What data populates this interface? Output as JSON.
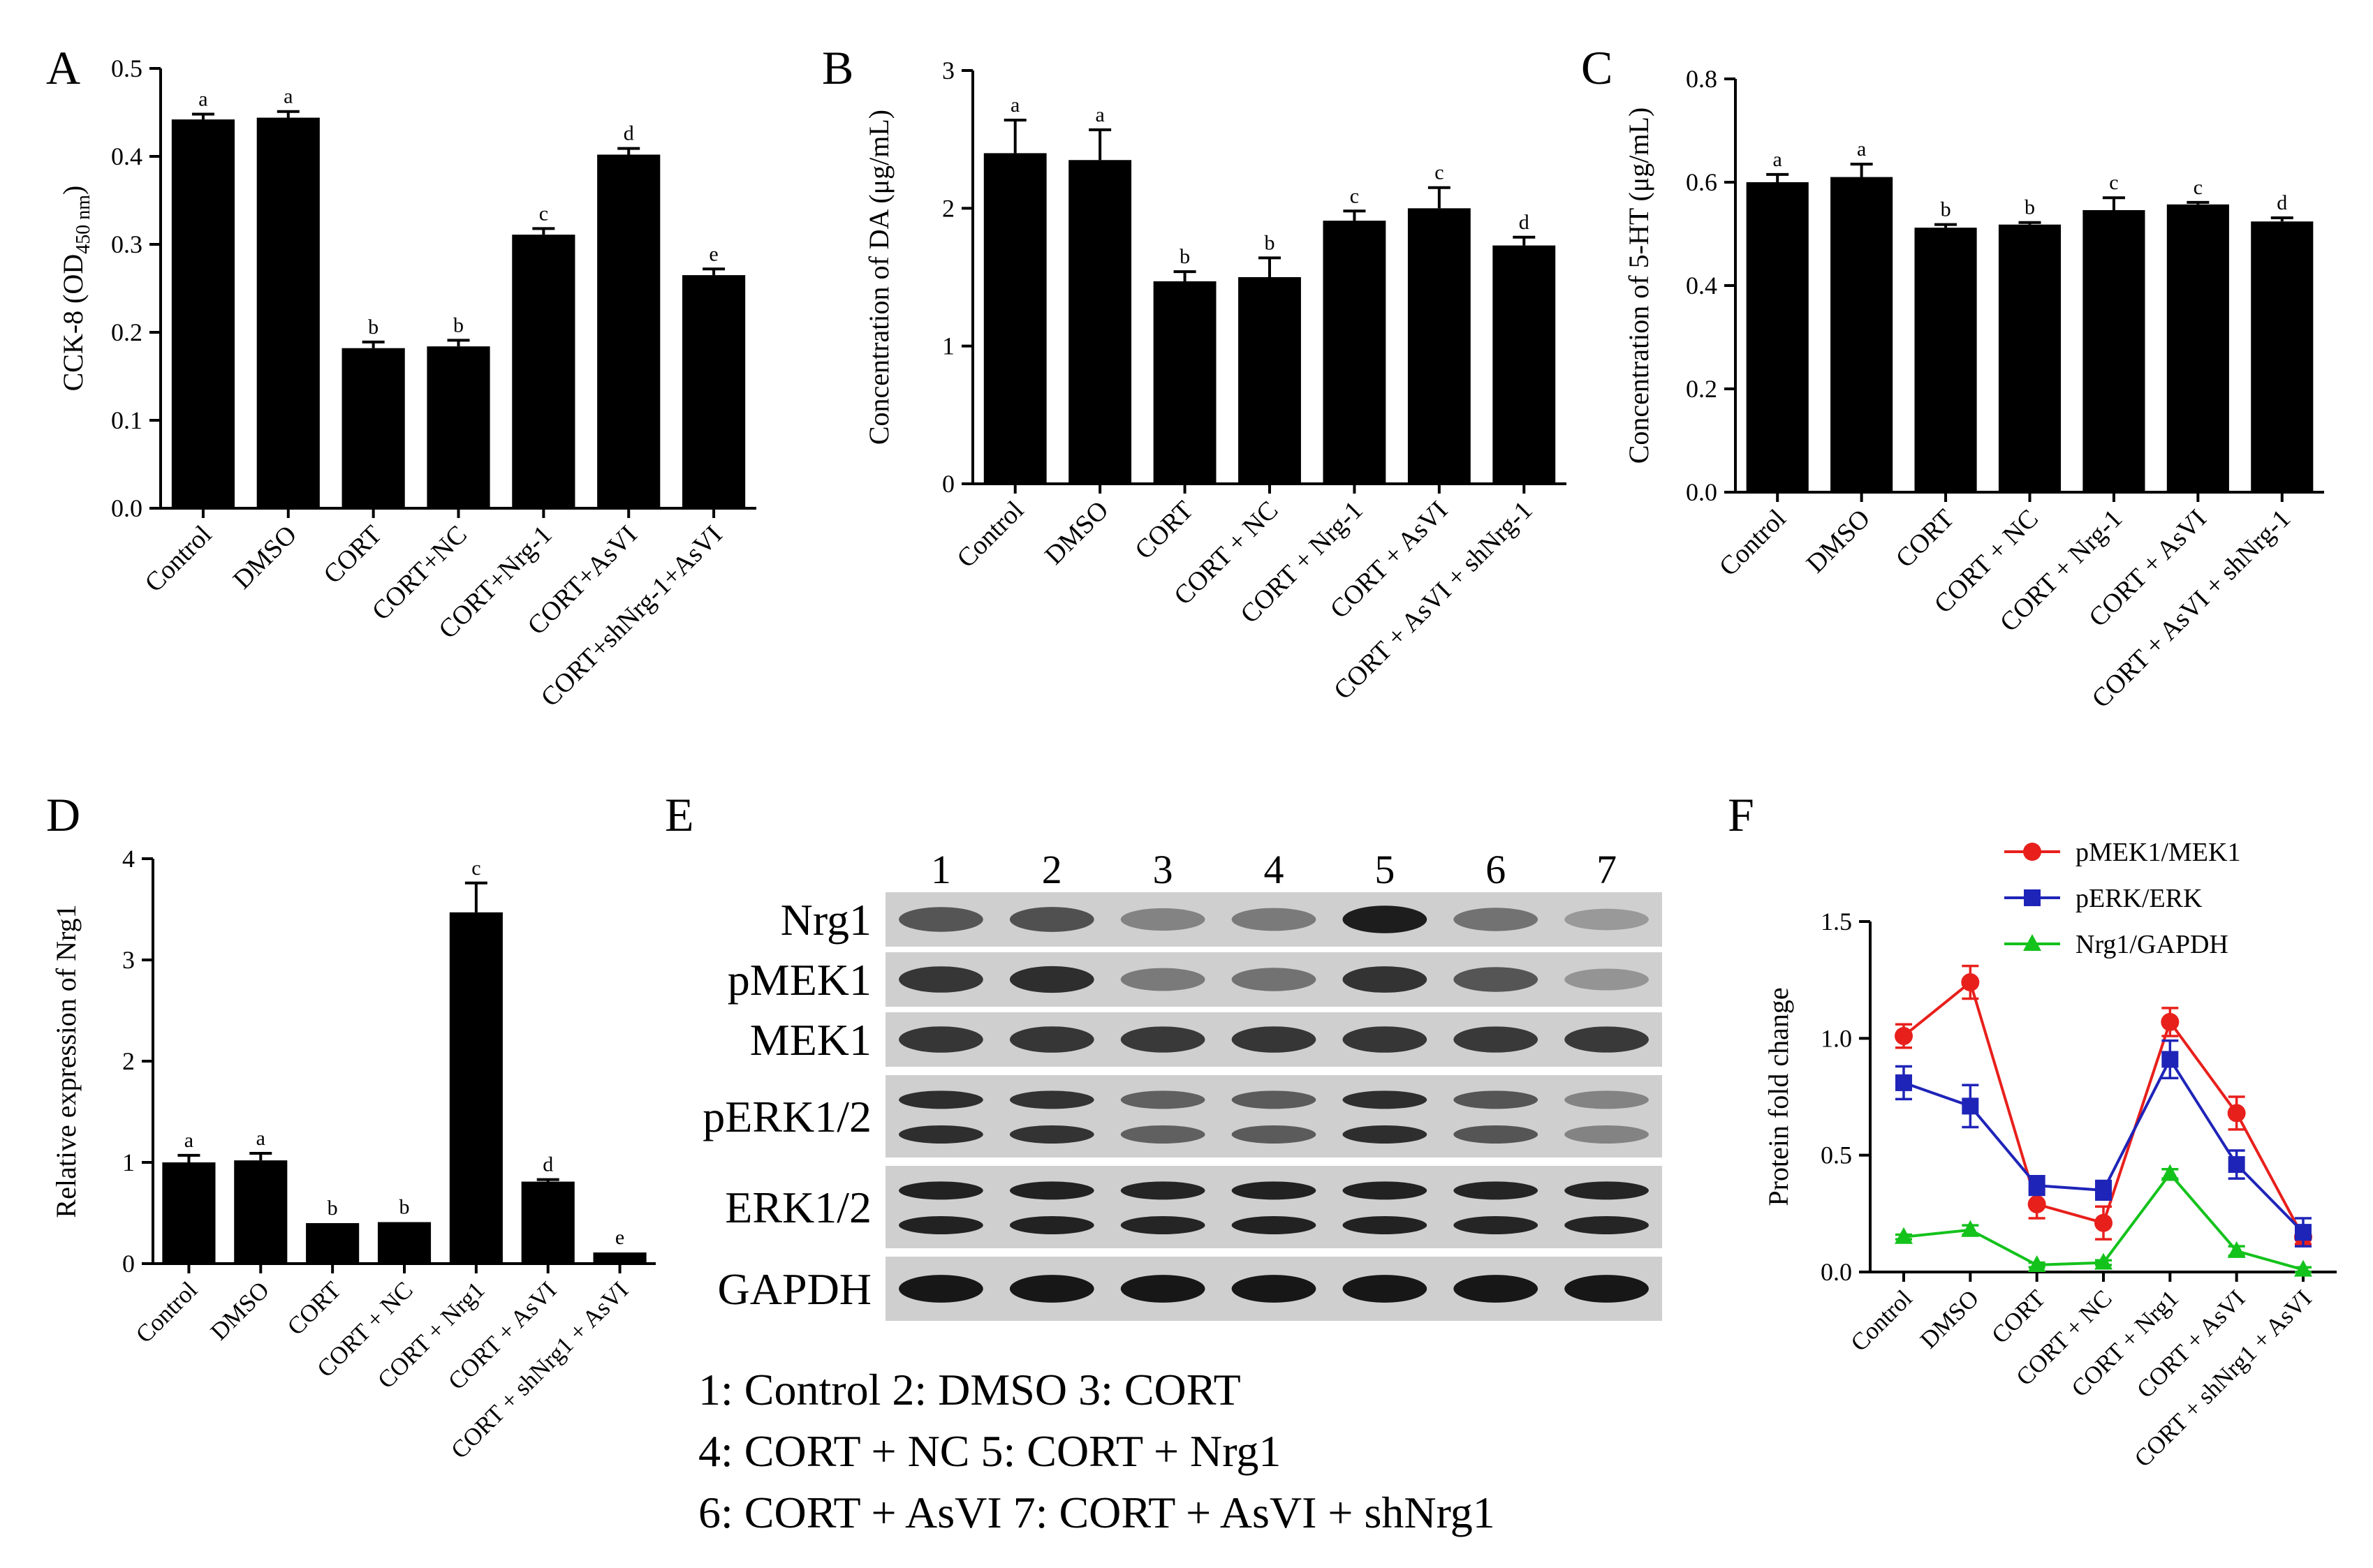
{
  "figure": {
    "background": "#ffffff",
    "bar_color": "#000000"
  },
  "chart_data": [
    {
      "id": "A",
      "type": "bar",
      "panel_label": "A",
      "ylabel_main": "CCK-8 (OD",
      "ylabel_sub": "450 nm",
      "ylabel_end": ")",
      "ylim": [
        0,
        0.5
      ],
      "yticks": [
        "0.0",
        "0.1",
        "0.2",
        "0.3",
        "0.4",
        "0.5"
      ],
      "categories": [
        "Control",
        "DMSO",
        "CORT",
        "CORT+NC",
        "CORT+Nrg-1",
        "CORT+AsVI",
        "CORT+shNrg-1+AsVI"
      ],
      "values": [
        0.442,
        0.444,
        0.182,
        0.184,
        0.311,
        0.402,
        0.265
      ],
      "errors": [
        0.006,
        0.007,
        0.007,
        0.007,
        0.007,
        0.007,
        0.007
      ],
      "significance": [
        "a",
        "a",
        "b",
        "b",
        "c",
        "d",
        "e"
      ]
    },
    {
      "id": "B",
      "type": "bar",
      "panel_label": "B",
      "ylabel": "Concentration of DA (μg/mL)",
      "ylim": [
        0,
        3
      ],
      "yticks": [
        "0",
        "1",
        "2",
        "3"
      ],
      "categories": [
        "Control",
        "DMSO",
        "CORT",
        "CORT + NC",
        "CORT + Nrg-1",
        "CORT + AsVI",
        "CORT + AsVI + shNrg-1"
      ],
      "values": [
        2.4,
        2.35,
        1.47,
        1.5,
        1.91,
        2.0,
        1.73
      ],
      "errors": [
        0.24,
        0.22,
        0.07,
        0.14,
        0.07,
        0.15,
        0.06
      ],
      "significance": [
        "a",
        "a",
        "b",
        "b",
        "c",
        "c",
        "d"
      ]
    },
    {
      "id": "C",
      "type": "bar",
      "panel_label": "C",
      "ylabel": "Concentration of 5-HT (μg/mL)",
      "ylim": [
        0,
        0.8
      ],
      "yticks": [
        "0.0",
        "0.2",
        "0.4",
        "0.6",
        "0.8"
      ],
      "categories": [
        "Control",
        "DMSO",
        "CORT",
        "CORT + NC",
        "CORT + Nrg-1",
        "CORT + AsVI",
        "CORT + AsVI + shNrg-1"
      ],
      "values": [
        0.6,
        0.61,
        0.512,
        0.518,
        0.546,
        0.557,
        0.524
      ],
      "errors": [
        0.015,
        0.025,
        0.006,
        0.004,
        0.024,
        0.004,
        0.007
      ],
      "significance": [
        "a",
        "a",
        "b",
        "b",
        "c",
        "c",
        "d"
      ]
    },
    {
      "id": "D",
      "type": "bar",
      "panel_label": "D",
      "ylabel": "Relative expression of Nrg1",
      "ylim": [
        0,
        4
      ],
      "yticks": [
        "0",
        "1",
        "2",
        "3",
        "4"
      ],
      "categories": [
        "Control",
        "DMSO",
        "CORT",
        "CORT + NC",
        "CORT + Nrg1",
        "CORT + AsVI",
        "CORT + shNrg1 + AsVI"
      ],
      "values": [
        1.0,
        1.02,
        0.4,
        0.41,
        3.47,
        0.81,
        0.11
      ],
      "errors": [
        0.07,
        0.07,
        0.0,
        0.0,
        0.29,
        0.02,
        0.0
      ],
      "significance": [
        "a",
        "a",
        "b",
        "b",
        "c",
        "d",
        "e"
      ]
    },
    {
      "id": "F",
      "type": "line",
      "panel_label": "F",
      "ylabel": "Protein fold change",
      "ylim": [
        0,
        1.5
      ],
      "yticks": [
        "0.0",
        "0.5",
        "1.0",
        "1.5"
      ],
      "categories": [
        "Control",
        "DMSO",
        "CORT",
        "CORT + NC",
        "CORT + Nrg1",
        "CORT + AsVI",
        "CORT + shNrg1 + AsVI"
      ],
      "legend_position": "top",
      "series": [
        {
          "name": "pMEK1/MEK1",
          "color": "#e8201c",
          "marker": "circle",
          "values": [
            1.01,
            1.24,
            0.29,
            0.21,
            1.07,
            0.68,
            0.15
          ],
          "errors": [
            0.05,
            0.07,
            0.06,
            0.07,
            0.06,
            0.07,
            0.03
          ]
        },
        {
          "name": "pERK/ERK",
          "color": "#1f24b8",
          "marker": "square",
          "values": [
            0.81,
            0.71,
            0.37,
            0.35,
            0.91,
            0.46,
            0.17
          ],
          "errors": [
            0.07,
            0.09,
            0.04,
            0.04,
            0.08,
            0.06,
            0.06
          ]
        },
        {
          "name": "Nrg1/GAPDH",
          "color": "#14c21c",
          "marker": "triangle",
          "values": [
            0.15,
            0.18,
            0.03,
            0.04,
            0.42,
            0.09,
            0.01
          ],
          "errors": [
            0.01,
            0.02,
            0.01,
            0.01,
            0.02,
            0.02,
            0.01
          ]
        }
      ]
    }
  ],
  "blot": {
    "panel_label": "E",
    "lanes": [
      "1",
      "2",
      "3",
      "4",
      "5",
      "6",
      "7"
    ],
    "rows": [
      {
        "label": "Nrg1",
        "bands": 1,
        "intensity": [
          0.62,
          0.65,
          0.35,
          0.4,
          0.95,
          0.45,
          0.22
        ]
      },
      {
        "label": "pMEK1",
        "bands": 1,
        "intensity": [
          0.8,
          0.85,
          0.4,
          0.45,
          0.82,
          0.62,
          0.25
        ]
      },
      {
        "label": "MEK1",
        "bands": 1,
        "intensity": [
          0.8,
          0.8,
          0.78,
          0.8,
          0.8,
          0.78,
          0.78
        ]
      },
      {
        "label": "pERK1/2",
        "bands": 2,
        "intensity": [
          0.85,
          0.82,
          0.55,
          0.58,
          0.85,
          0.62,
          0.35
        ]
      },
      {
        "label": "ERK1/2",
        "bands": 2,
        "intensity": [
          0.92,
          0.92,
          0.9,
          0.92,
          0.92,
          0.9,
          0.9
        ]
      },
      {
        "label": "GAPDH",
        "bands": 1,
        "intensity": [
          0.98,
          0.98,
          0.98,
          0.98,
          0.98,
          0.98,
          0.98
        ]
      }
    ],
    "key_lines": [
      "1: Control    2: DMSO    3: CORT",
      "4: CORT + NC    5: CORT + Nrg1",
      "6: CORT + AsVI    7: CORT + AsVI + shNrg1"
    ]
  }
}
